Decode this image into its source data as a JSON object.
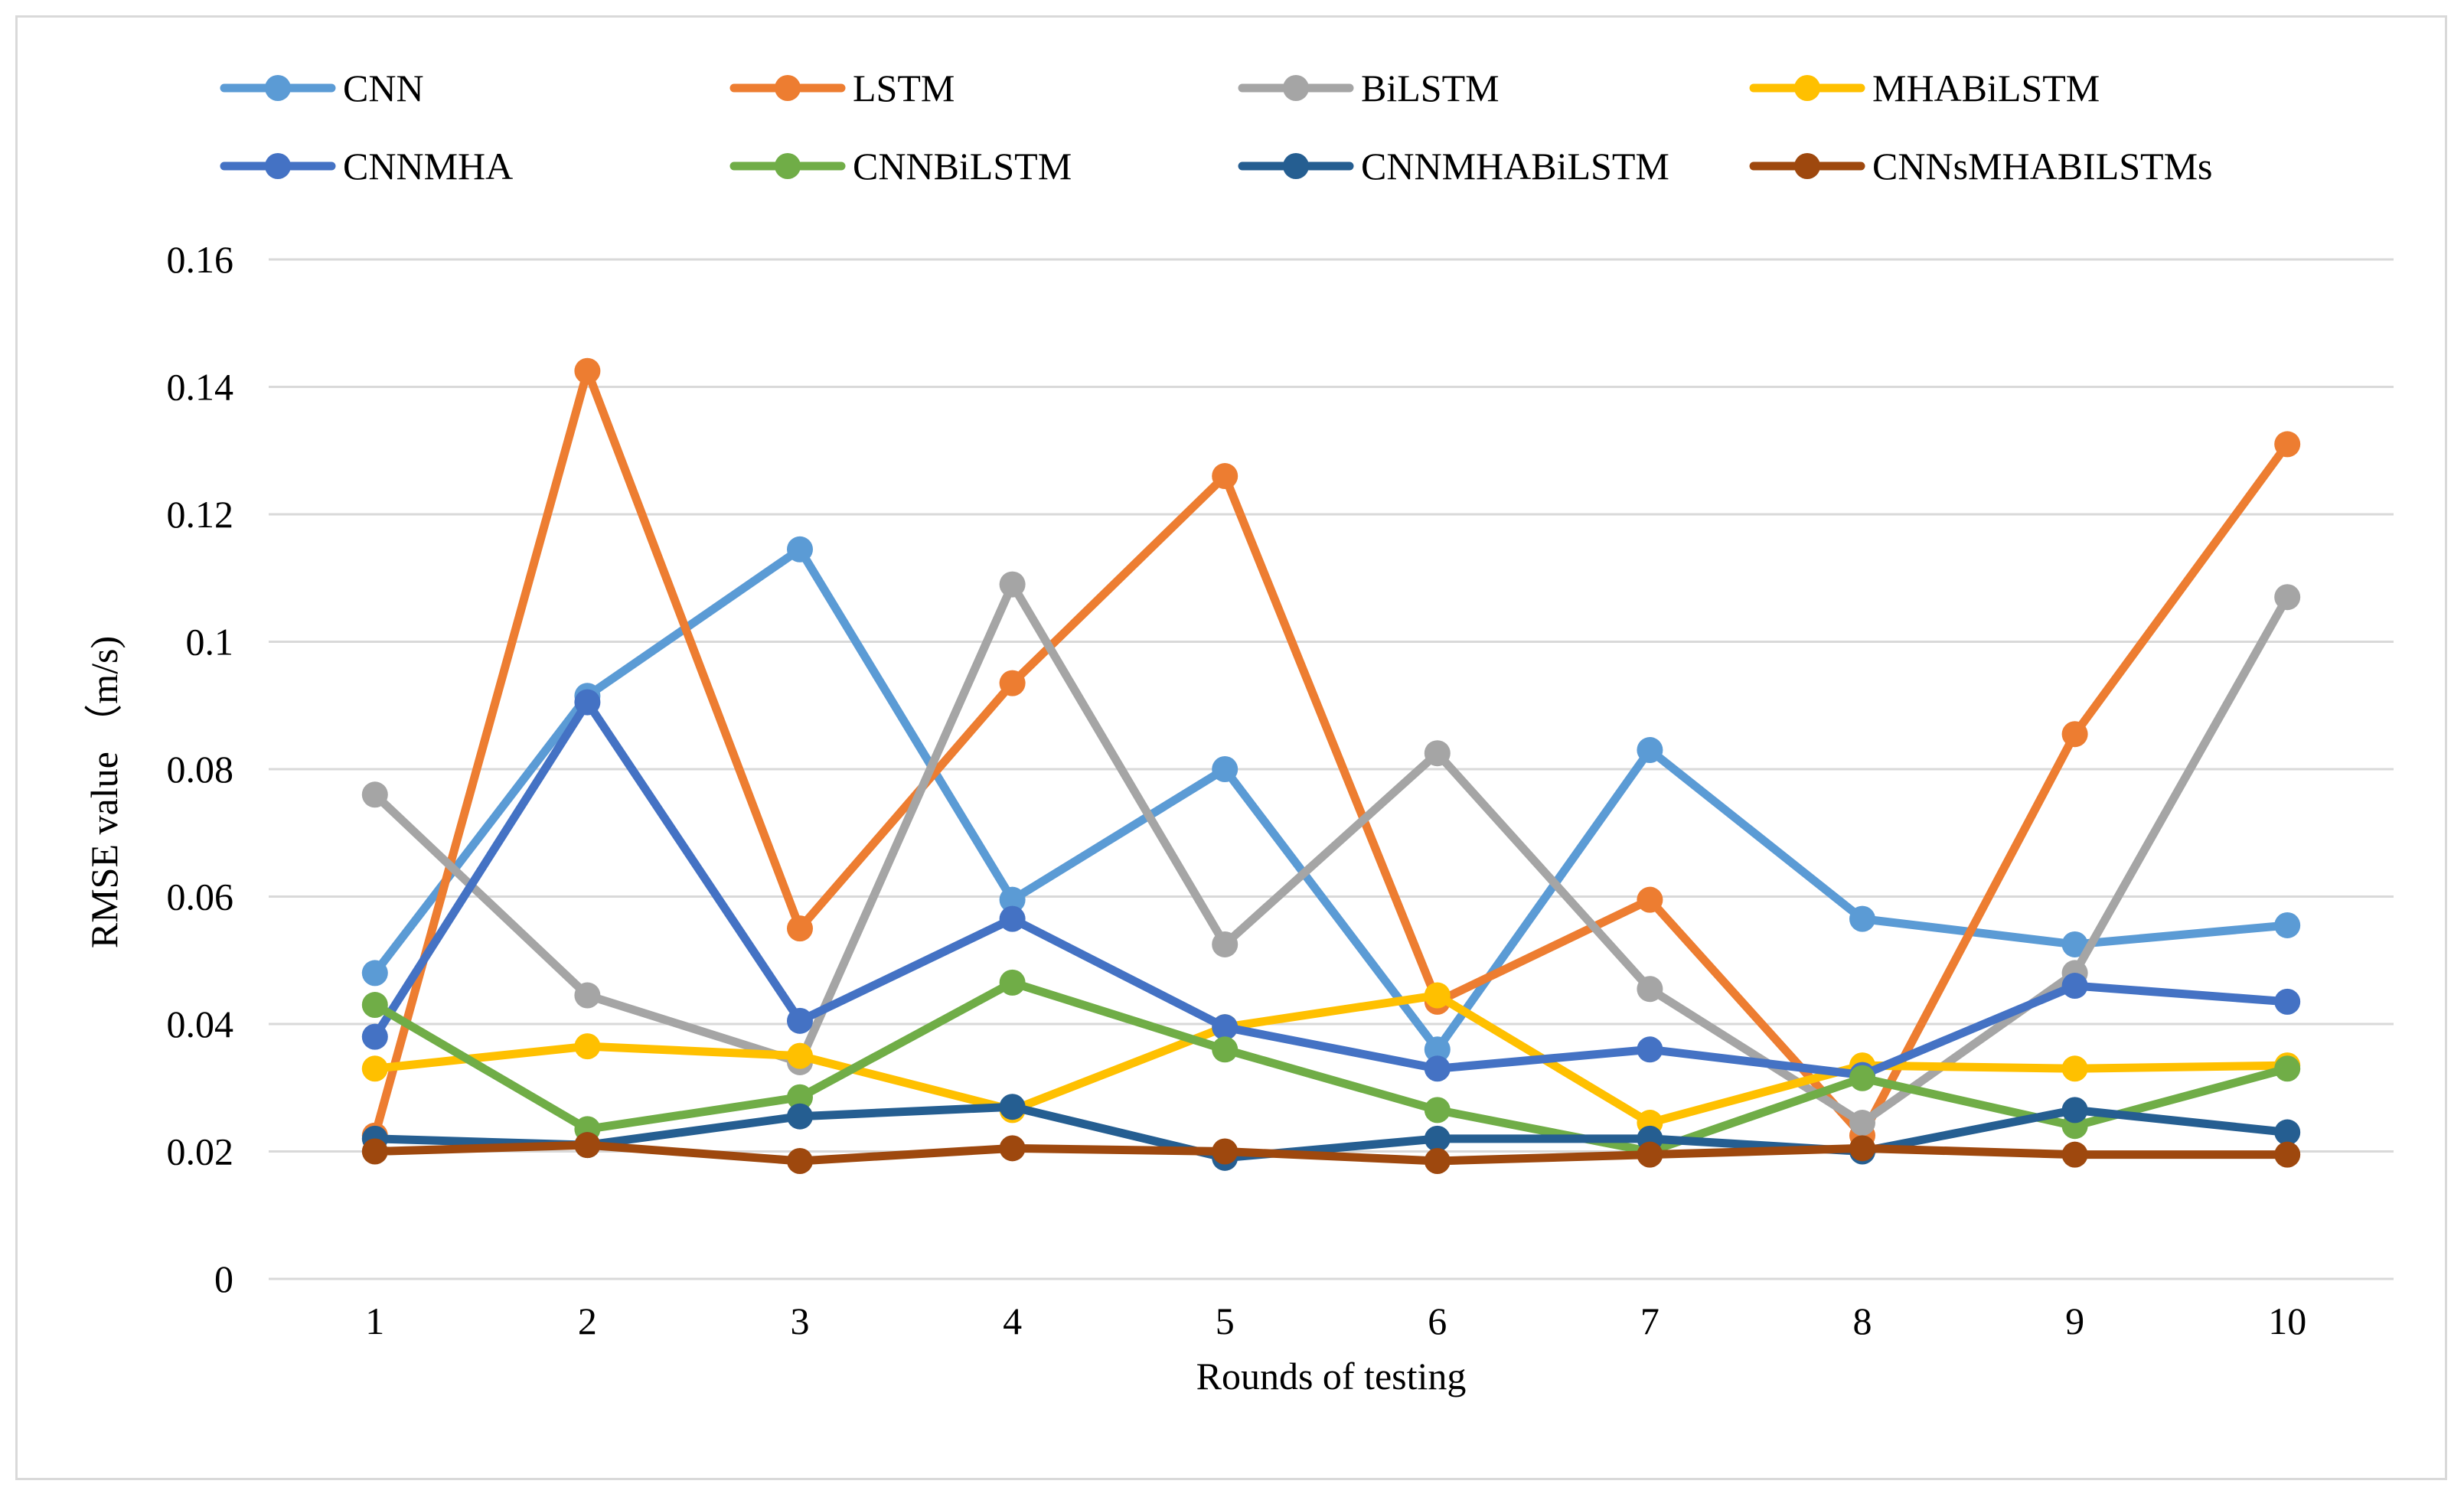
{
  "chart_data": {
    "type": "line",
    "title": "",
    "xlabel": "Rounds of testing",
    "ylabel": "RMSE value （m/s)",
    "x": [
      1,
      2,
      3,
      4,
      5,
      6,
      7,
      8,
      9,
      10
    ],
    "ylim": [
      0,
      0.16
    ],
    "yticks": [
      0,
      0.02,
      0.04,
      0.06,
      0.08,
      0.1,
      0.12,
      0.14,
      0.16
    ],
    "ytick_labels": [
      "0",
      "0.02",
      "0.04",
      "0.06",
      "0.08",
      "0.1",
      "0.12",
      "0.14",
      "0.16"
    ],
    "grid": "horizontal",
    "legend_position": "top",
    "series": [
      {
        "name": "CNN",
        "color": "#5B9BD5",
        "values": [
          0.048,
          0.0915,
          0.1145,
          0.0595,
          0.08,
          0.036,
          0.083,
          0.0565,
          0.0525,
          0.0555
        ]
      },
      {
        "name": "LSTM",
        "color": "#ED7D31",
        "values": [
          0.0225,
          0.1425,
          0.055,
          0.0935,
          0.126,
          0.0435,
          0.0595,
          0.0225,
          0.0855,
          0.131
        ]
      },
      {
        "name": "BiLSTM",
        "color": "#A5A5A5",
        "values": [
          0.076,
          0.0445,
          0.034,
          0.109,
          0.0525,
          0.0825,
          0.0455,
          0.0245,
          0.048,
          0.107
        ]
      },
      {
        "name": "MHABiLSTM",
        "color": "#FFC000",
        "values": [
          0.033,
          0.0365,
          0.035,
          0.0265,
          0.0395,
          0.0445,
          0.0245,
          0.0335,
          0.033,
          0.0335
        ]
      },
      {
        "name": "CNNMHA",
        "color": "#4472C4",
        "values": [
          0.038,
          0.0905,
          0.0405,
          0.0565,
          0.0395,
          0.033,
          0.036,
          0.032,
          0.046,
          0.0435
        ]
      },
      {
        "name": "CNNBiLSTM",
        "color": "#70AD47",
        "values": [
          0.043,
          0.0235,
          0.0285,
          0.0465,
          0.036,
          0.0265,
          0.02,
          0.0315,
          0.024,
          0.033
        ]
      },
      {
        "name": "CNNMHABiLSTM",
        "color": "#255E91",
        "values": [
          0.022,
          0.021,
          0.0255,
          0.027,
          0.019,
          0.022,
          0.022,
          0.02,
          0.0265,
          0.023
        ]
      },
      {
        "name": "CNNsMHABILSTMs",
        "color": "#9E480E",
        "values": [
          0.02,
          0.021,
          0.0185,
          0.0205,
          0.02,
          0.0185,
          0.0195,
          0.0205,
          0.0195,
          0.0195
        ]
      }
    ]
  }
}
